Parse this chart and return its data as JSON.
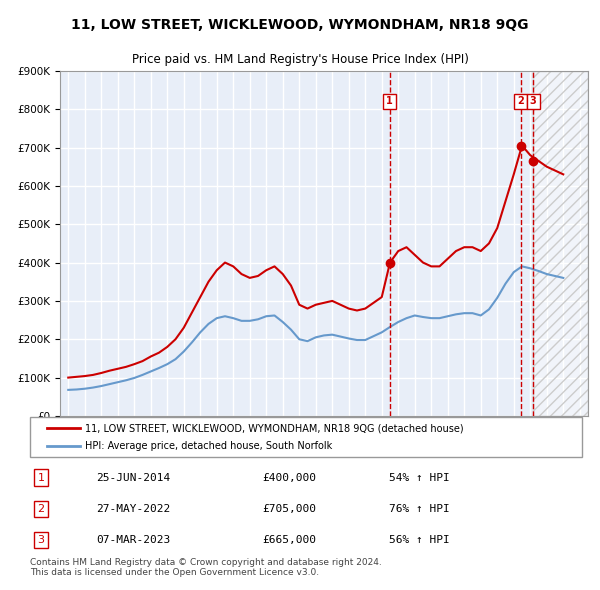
{
  "title": "11, LOW STREET, WICKLEWOOD, WYMONDHAM, NR18 9QG",
  "subtitle": "Price paid vs. HM Land Registry's House Price Index (HPI)",
  "legend_line1": "11, LOW STREET, WICKLEWOOD, WYMONDHAM, NR18 9QG (detached house)",
  "legend_line2": "HPI: Average price, detached house, South Norfolk",
  "footnote": "Contains HM Land Registry data © Crown copyright and database right 2024.\nThis data is licensed under the Open Government Licence v3.0.",
  "transactions": [
    {
      "num": 1,
      "date": "25-JUN-2014",
      "price": "£400,000",
      "hpi": "54% ↑ HPI",
      "x": 2014.48
    },
    {
      "num": 2,
      "date": "27-MAY-2022",
      "price": "£705,000",
      "hpi": "76% ↑ HPI",
      "x": 2022.41
    },
    {
      "num": 3,
      "date": "07-MAR-2023",
      "price": "£665,000",
      "hpi": "56% ↑ HPI",
      "x": 2023.18
    }
  ],
  "price_color": "#cc0000",
  "hpi_color": "#6699cc",
  "background_color": "#e8eef8",
  "grid_color": "#ffffff",
  "ylim": [
    0,
    900000
  ],
  "xlim_start": 1994.5,
  "xlim_end": 2026.5,
  "hatch_start": 2023.18,
  "hatch_end": 2026.5,
  "price_data": {
    "x": [
      1995.0,
      1995.5,
      1996.0,
      1996.5,
      1997.0,
      1997.5,
      1998.0,
      1998.5,
      1999.0,
      1999.5,
      2000.0,
      2000.5,
      2001.0,
      2001.5,
      2002.0,
      2002.5,
      2003.0,
      2003.5,
      2004.0,
      2004.5,
      2005.0,
      2005.5,
      2006.0,
      2006.5,
      2007.0,
      2007.5,
      2008.0,
      2008.5,
      2009.0,
      2009.5,
      2010.0,
      2010.5,
      2011.0,
      2011.5,
      2012.0,
      2012.5,
      2013.0,
      2013.5,
      2014.0,
      2014.5,
      2015.0,
      2015.5,
      2016.0,
      2016.5,
      2017.0,
      2017.5,
      2018.0,
      2018.5,
      2019.0,
      2019.5,
      2020.0,
      2020.5,
      2021.0,
      2021.5,
      2022.0,
      2022.5,
      2023.0,
      2023.5,
      2024.0,
      2024.5,
      2025.0
    ],
    "y": [
      100000,
      102000,
      104000,
      107000,
      112000,
      118000,
      123000,
      128000,
      135000,
      143000,
      155000,
      165000,
      180000,
      200000,
      230000,
      270000,
      310000,
      350000,
      380000,
      400000,
      390000,
      370000,
      360000,
      365000,
      380000,
      390000,
      370000,
      340000,
      290000,
      280000,
      290000,
      295000,
      300000,
      290000,
      280000,
      275000,
      280000,
      295000,
      310000,
      400000,
      430000,
      440000,
      420000,
      400000,
      390000,
      390000,
      410000,
      430000,
      440000,
      440000,
      430000,
      450000,
      490000,
      560000,
      630000,
      705000,
      680000,
      665000,
      650000,
      640000,
      630000
    ]
  },
  "hpi_data": {
    "x": [
      1995.0,
      1995.5,
      1996.0,
      1996.5,
      1997.0,
      1997.5,
      1998.0,
      1998.5,
      1999.0,
      1999.5,
      2000.0,
      2000.5,
      2001.0,
      2001.5,
      2002.0,
      2002.5,
      2003.0,
      2003.5,
      2004.0,
      2004.5,
      2005.0,
      2005.5,
      2006.0,
      2006.5,
      2007.0,
      2007.5,
      2008.0,
      2008.5,
      2009.0,
      2009.5,
      2010.0,
      2010.5,
      2011.0,
      2011.5,
      2012.0,
      2012.5,
      2013.0,
      2013.5,
      2014.0,
      2014.5,
      2015.0,
      2015.5,
      2016.0,
      2016.5,
      2017.0,
      2017.5,
      2018.0,
      2018.5,
      2019.0,
      2019.5,
      2020.0,
      2020.5,
      2021.0,
      2021.5,
      2022.0,
      2022.5,
      2023.0,
      2023.5,
      2024.0,
      2024.5,
      2025.0
    ],
    "y": [
      68000,
      69000,
      71000,
      74000,
      78000,
      83000,
      88000,
      93000,
      99000,
      107000,
      116000,
      125000,
      135000,
      148000,
      168000,
      192000,
      218000,
      240000,
      255000,
      260000,
      255000,
      248000,
      248000,
      252000,
      260000,
      262000,
      245000,
      225000,
      200000,
      195000,
      205000,
      210000,
      212000,
      207000,
      202000,
      198000,
      198000,
      208000,
      218000,
      232000,
      245000,
      255000,
      262000,
      258000,
      255000,
      255000,
      260000,
      265000,
      268000,
      268000,
      262000,
      278000,
      308000,
      345000,
      375000,
      390000,
      385000,
      378000,
      370000,
      365000,
      360000
    ]
  }
}
